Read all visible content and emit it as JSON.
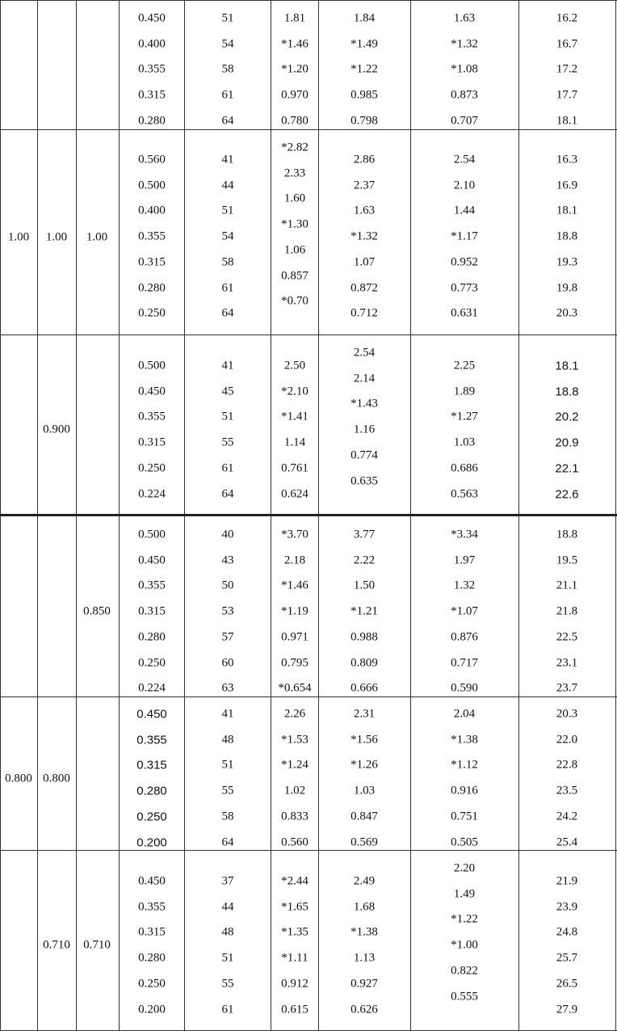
{
  "groups": [
    {
      "left": [
        "",
        "",
        ""
      ],
      "cols": [
        [
          "0.450",
          "0.400",
          "0.355",
          "0.315",
          "0.280"
        ],
        [
          "51",
          "54",
          "58",
          "61",
          "64"
        ],
        [
          "1.81",
          "*1.46",
          "*1.20",
          "0.970",
          "0.780"
        ],
        [
          "1.84",
          "*1.49",
          "*1.22",
          "0.985",
          "0.798"
        ],
        [
          "1.63",
          "*1.32",
          "*1.08",
          "0.873",
          "0.707"
        ],
        [
          "16.2",
          "16.7",
          "17.2",
          "17.7",
          "18.1"
        ]
      ]
    },
    {
      "left": [
        "1.00",
        "1.00",
        "1.00"
      ],
      "cols": [
        [
          "0.560",
          "0.500",
          "0.400",
          "0.355",
          "0.315",
          "0.280",
          "0.250"
        ],
        [
          "41",
          "44",
          "51",
          "54",
          "58",
          "61",
          "64"
        ],
        [
          "*2.82",
          "2.33",
          "1.60",
          "*1.30",
          "1.06",
          "0.857",
          "*0.70"
        ],
        [
          "2.86",
          "2.37",
          "1.63",
          "*1.32",
          "1.07",
          "0.872",
          "0.712"
        ],
        [
          "2.54",
          "2.10",
          "1.44",
          "*1.17",
          "0.952",
          "0.773",
          "0.631"
        ],
        [
          "16.3",
          "16.9",
          "18.1",
          "18.8",
          "19.3",
          "19.8",
          "20.3"
        ]
      ]
    },
    {
      "left": [
        "",
        "0.900",
        ""
      ],
      "cols": [
        [
          "0.500",
          "0.450",
          "0.355",
          "0.315",
          "0.250",
          "0.224"
        ],
        [
          "41",
          "45",
          "51",
          "55",
          "61",
          "64"
        ],
        [
          "2.50",
          "*2.10",
          "*1.41",
          "1.14",
          "0.761",
          "0.624"
        ],
        [
          "2.54",
          "2.14",
          "*1.43",
          "1.16",
          "0.774",
          "0.635"
        ],
        [
          "2.25",
          "1.89",
          "*1.27",
          "1.03",
          "0.686",
          "0.563"
        ],
        [
          "18.1",
          "18.8",
          "20.2",
          "20.9",
          "22.1",
          "22.6"
        ]
      ]
    },
    {
      "left": [
        "",
        "",
        "0.850"
      ],
      "cols": [
        [
          "0.500",
          "0.450",
          "0.355",
          "0.315",
          "0.280",
          "0.250",
          "0.224"
        ],
        [
          "40",
          "43",
          "50",
          "53",
          "57",
          "60",
          "63"
        ],
        [
          "*3.70",
          "2.18",
          "*1.46",
          "*1.19",
          "0.971",
          "0.795",
          "*0.654"
        ],
        [
          "3.77",
          "2.22",
          "1.50",
          "*1.21",
          "0.988",
          "0.809",
          "0.666"
        ],
        [
          "*3.34",
          "1.97",
          "1.32",
          "*1.07",
          "0.876",
          "0.717",
          "0.590"
        ],
        [
          "18.8",
          "19.5",
          "21.1",
          "21.8",
          "22.5",
          "23.1",
          "23.7"
        ]
      ]
    },
    {
      "left": [
        "0.800",
        "0.800",
        ""
      ],
      "cols": [
        [
          "0.450",
          "0.355",
          "0.315",
          "0.280",
          "0.250",
          "0.200"
        ],
        [
          "41",
          "48",
          "51",
          "55",
          "58",
          "64"
        ],
        [
          "2.26",
          "*1.53",
          "*1.24",
          "1.02",
          "0.833",
          "0.560"
        ],
        [
          "2.31",
          "*1.56",
          "*1.26",
          "1.03",
          "0.847",
          "0.569"
        ],
        [
          "2.04",
          "*1.38",
          "*1.12",
          "0.916",
          "0.751",
          "0.505"
        ],
        [
          "20.3",
          "22.0",
          "22.8",
          "23.5",
          "24.2",
          "25.4"
        ]
      ]
    },
    {
      "left": [
        "",
        "0.710",
        "0.710"
      ],
      "cols": [
        [
          "0.450",
          "0.355",
          "0.315",
          "0.280",
          "0.250",
          "0.200"
        ],
        [
          "37",
          "44",
          "48",
          "51",
          "55",
          "61"
        ],
        [
          "*2.44",
          "*1.65",
          "*1.35",
          "*1.11",
          "0.912",
          "0.615"
        ],
        [
          "2.49",
          "1.68",
          "*1.38",
          "1.13",
          "0.927",
          "0.626"
        ],
        [
          "2.20",
          "1.49",
          "*1.22",
          "*1.00",
          "0.822",
          "0.555"
        ],
        [
          "21.9",
          "23.9",
          "24.8",
          "25.7",
          "26.5",
          "27.9"
        ]
      ]
    }
  ]
}
